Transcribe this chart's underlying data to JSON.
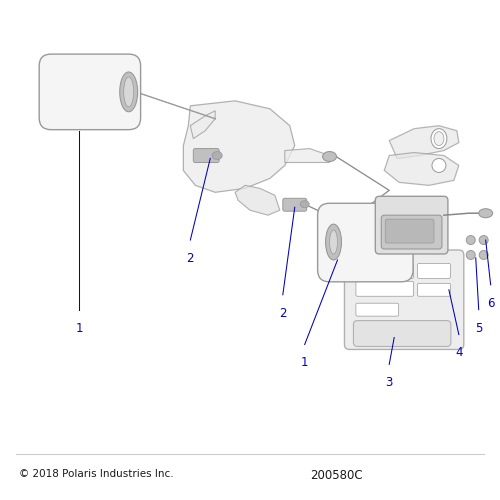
{
  "bg_color": "#ffffff",
  "label_color": "#0000bb",
  "text_color": "#1a1a1a",
  "component_fill": "#e8e8e8",
  "component_edge": "#999999",
  "component_dark": "#c0c0c0",
  "component_light": "#f0f0f0",
  "component_white": "#f5f5f5",
  "copyright_text": "© 2018 Polaris Industries Inc.",
  "part_number": "200580C",
  "label_fs": 8.5,
  "fig_width": 5.0,
  "fig_height": 5.0,
  "dpi": 100
}
